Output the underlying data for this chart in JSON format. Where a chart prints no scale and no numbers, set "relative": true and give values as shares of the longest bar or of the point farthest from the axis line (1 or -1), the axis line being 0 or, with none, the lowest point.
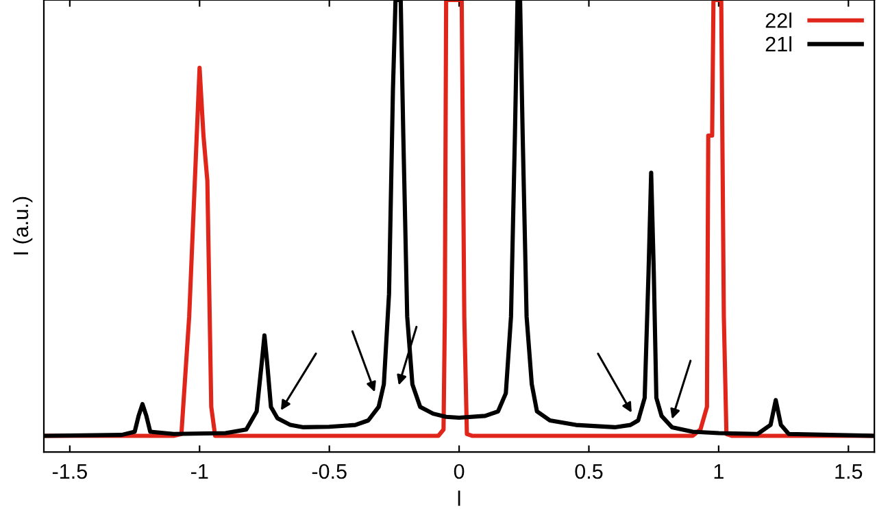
{
  "chart_data": {
    "type": "line",
    "xlabel": "l",
    "ylabel": "I (a.u.)",
    "relative": true,
    "xlim": [
      -1.6,
      1.6
    ],
    "xticks": [
      -1.5,
      -1,
      -0.5,
      0,
      0.5,
      1,
      1.5
    ],
    "tick_labels": "x",
    "grid": false,
    "legend": "top right",
    "marker": "none",
    "line_style": "solid",
    "series": [
      {
        "name": "22l",
        "color": "#e0251b",
        "x": [
          -1.6,
          -1.1,
          -1.07,
          -1.04,
          -1.0,
          -0.985,
          -0.97,
          -0.955,
          -0.94,
          -0.08,
          -0.06,
          -0.055,
          -0.05,
          0.0,
          0.01,
          0.02,
          0.03,
          0.05,
          0.9,
          0.93,
          0.955,
          0.96,
          0.975,
          0.98,
          1.01,
          1.02,
          1.03,
          1.05,
          1.6
        ],
        "values": [
          0.036,
          0.036,
          0.04,
          0.3,
          0.85,
          0.7,
          0.6,
          0.1,
          0.036,
          0.036,
          0.05,
          0.3,
          1,
          1,
          1,
          0.3,
          0.04,
          0.036,
          0.036,
          0.05,
          0.1,
          0.7,
          0.7,
          1,
          1,
          0.3,
          0.04,
          0.036,
          0.036
        ]
      },
      {
        "name": "21l",
        "color": "#000000",
        "x": [
          -1.6,
          -1.3,
          -1.25,
          -1.235,
          -1.22,
          -1.205,
          -1.19,
          -1.1,
          -0.9,
          -0.82,
          -0.78,
          -0.76,
          -0.75,
          -0.74,
          -0.725,
          -0.7,
          -0.65,
          -0.6,
          -0.5,
          -0.4,
          -0.35,
          -0.31,
          -0.29,
          -0.27,
          -0.255,
          -0.245,
          -0.225,
          -0.215,
          -0.2,
          -0.18,
          -0.15,
          -0.1,
          -0.05,
          0,
          0.1,
          0.15,
          0.18,
          0.2,
          0.215,
          0.225,
          0.235,
          0.245,
          0.26,
          0.28,
          0.3,
          0.35,
          0.45,
          0.6,
          0.66,
          0.69,
          0.715,
          0.73,
          0.74,
          0.75,
          0.76,
          0.78,
          0.82,
          0.9,
          1.0,
          1.15,
          1.2,
          1.22,
          1.24,
          1.27,
          1.6
        ],
        "values": [
          0.036,
          0.038,
          0.045,
          0.08,
          0.106,
          0.08,
          0.045,
          0.04,
          0.042,
          0.05,
          0.09,
          0.2,
          0.258,
          0.2,
          0.1,
          0.075,
          0.06,
          0.055,
          0.056,
          0.06,
          0.07,
          0.1,
          0.15,
          0.35,
          0.8,
          1,
          1,
          0.7,
          0.3,
          0.15,
          0.1,
          0.085,
          0.078,
          0.076,
          0.08,
          0.09,
          0.13,
          0.3,
          0.7,
          1,
          1,
          0.7,
          0.3,
          0.15,
          0.09,
          0.07,
          0.06,
          0.055,
          0.06,
          0.07,
          0.12,
          0.4,
          0.618,
          0.4,
          0.12,
          0.08,
          0.055,
          0.045,
          0.042,
          0.04,
          0.06,
          0.115,
          0.06,
          0.04,
          0.036
        ]
      }
    ]
  }
}
